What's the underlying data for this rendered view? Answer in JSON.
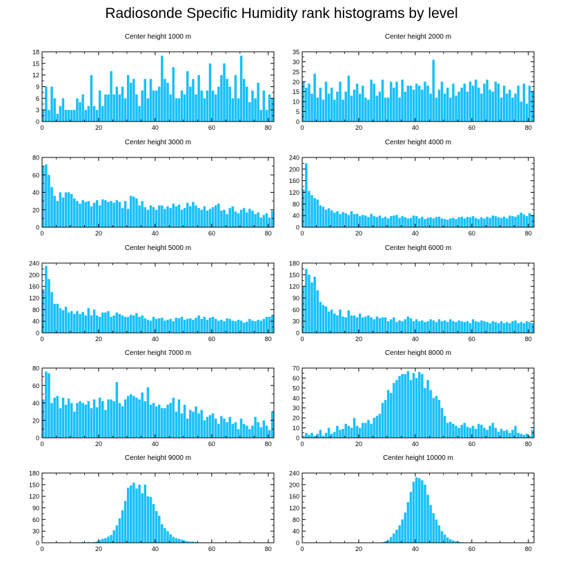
{
  "title": "Radiosonde Specific Humidity rank histograms by level",
  "colors": {
    "bar": "#18c0f8",
    "axis": "#000000",
    "background": "#ffffff"
  },
  "chart_data": [
    {
      "type": "bar",
      "title": "Center height 1000 m",
      "xticks": [
        0,
        20,
        40,
        60,
        80
      ],
      "xlim": [
        0,
        82
      ],
      "ylim": [
        0,
        18
      ],
      "yticks": [
        0,
        3,
        6,
        9,
        12,
        15,
        18
      ],
      "values": [
        3,
        9,
        3,
        9,
        6,
        2,
        4,
        6,
        3,
        3,
        3,
        3,
        6,
        5,
        7,
        3,
        4,
        12,
        4,
        3,
        8,
        4,
        7,
        7,
        13,
        7,
        9,
        7,
        9,
        6,
        12,
        10,
        11,
        7,
        4,
        8,
        11,
        6,
        11,
        8,
        8,
        9,
        17,
        11,
        10,
        7,
        14,
        6,
        6,
        8,
        7,
        13,
        9,
        11,
        7,
        12,
        8,
        6,
        8,
        15,
        8,
        7,
        9,
        12,
        15,
        11,
        9,
        6,
        12,
        6,
        17,
        11,
        9,
        5,
        8,
        6,
        10,
        3,
        8,
        3,
        7,
        6
      ]
    },
    {
      "type": "bar",
      "title": "Center height 2000 m",
      "xticks": [
        0,
        20,
        40,
        60,
        80
      ],
      "xlim": [
        0,
        82
      ],
      "ylim": [
        0,
        35
      ],
      "yticks": [
        0,
        5,
        10,
        15,
        20,
        25,
        30,
        35
      ],
      "values": [
        20,
        17,
        19,
        14,
        24,
        12,
        17,
        11,
        20,
        14,
        17,
        11,
        15,
        20,
        11,
        15,
        23,
        13,
        16,
        19,
        14,
        18,
        12,
        11,
        21,
        19,
        13,
        15,
        21,
        12,
        12,
        20,
        17,
        20,
        12,
        21,
        15,
        18,
        18,
        16,
        19,
        18,
        16,
        20,
        18,
        14,
        31,
        12,
        16,
        20,
        14,
        17,
        12,
        19,
        13,
        15,
        17,
        19,
        15,
        20,
        18,
        21,
        17,
        14,
        19,
        21,
        16,
        15,
        20,
        19,
        12,
        18,
        14,
        16,
        12,
        14,
        18,
        10,
        19,
        9,
        18,
        15
      ]
    },
    {
      "type": "bar",
      "title": "Center height 3000 m",
      "xticks": [
        0,
        20,
        40,
        60,
        80
      ],
      "xlim": [
        0,
        82
      ],
      "ylim": [
        0,
        80
      ],
      "yticks": [
        0,
        20,
        40,
        60,
        80
      ],
      "values": [
        70,
        72,
        60,
        46,
        36,
        30,
        40,
        34,
        40,
        40,
        38,
        33,
        30,
        27,
        31,
        29,
        30,
        24,
        28,
        31,
        25,
        32,
        31,
        29,
        30,
        28,
        31,
        29,
        22,
        30,
        21,
        36,
        35,
        33,
        25,
        30,
        23,
        20,
        25,
        23,
        20,
        25,
        25,
        21,
        24,
        22,
        27,
        24,
        26,
        20,
        22,
        28,
        24,
        29,
        25,
        22,
        20,
        24,
        19,
        21,
        23,
        25,
        27,
        19,
        20,
        15,
        22,
        24,
        18,
        16,
        20,
        22,
        17,
        21,
        19,
        15,
        17,
        11,
        14,
        16,
        11,
        19
      ]
    },
    {
      "type": "bar",
      "title": "Center height 4000 m",
      "xticks": [
        0,
        20,
        40,
        60,
        80
      ],
      "xlim": [
        0,
        82
      ],
      "ylim": [
        0,
        240
      ],
      "yticks": [
        0,
        40,
        80,
        120,
        160,
        200,
        240
      ],
      "values": [
        130,
        220,
        125,
        110,
        100,
        95,
        75,
        70,
        60,
        65,
        58,
        50,
        55,
        45,
        52,
        48,
        42,
        55,
        45,
        46,
        38,
        42,
        40,
        35,
        46,
        38,
        35,
        40,
        32,
        36,
        30,
        38,
        40,
        42,
        32,
        38,
        34,
        30,
        32,
        40,
        38,
        30,
        36,
        28,
        32,
        34,
        30,
        35,
        36,
        30,
        28,
        26,
        30,
        32,
        28,
        34,
        36,
        30,
        35,
        34,
        38,
        32,
        28,
        34,
        30,
        36,
        32,
        40,
        38,
        34,
        32,
        36,
        30,
        40,
        38,
        36,
        42,
        50,
        44,
        38,
        48,
        42
      ]
    },
    {
      "type": "bar",
      "title": "Center height 5000 m",
      "xticks": [
        0,
        20,
        40,
        60,
        80
      ],
      "xlim": [
        0,
        82
      ],
      "ylim": [
        0,
        240
      ],
      "yticks": [
        0,
        40,
        80,
        120,
        160,
        200,
        240
      ],
      "values": [
        150,
        230,
        185,
        140,
        100,
        100,
        85,
        78,
        90,
        70,
        75,
        65,
        75,
        65,
        72,
        60,
        85,
        60,
        80,
        60,
        55,
        70,
        70,
        75,
        55,
        60,
        70,
        65,
        60,
        55,
        55,
        62,
        60,
        68,
        55,
        60,
        50,
        45,
        42,
        55,
        48,
        50,
        52,
        42,
        45,
        48,
        40,
        52,
        50,
        55,
        45,
        48,
        50,
        45,
        52,
        60,
        48,
        55,
        45,
        52,
        55,
        48,
        42,
        45,
        40,
        50,
        48,
        42,
        40,
        45,
        42,
        35,
        38,
        48,
        42,
        40,
        45,
        42,
        48,
        55,
        55,
        60
      ]
    },
    {
      "type": "bar",
      "title": "Center height 6000 m",
      "xticks": [
        0,
        20,
        40,
        60,
        80
      ],
      "xlim": [
        0,
        82
      ],
      "ylim": [
        0,
        180
      ],
      "yticks": [
        0,
        30,
        60,
        90,
        120,
        150,
        180
      ],
      "values": [
        120,
        165,
        150,
        130,
        145,
        110,
        80,
        72,
        68,
        55,
        60,
        50,
        45,
        60,
        42,
        40,
        58,
        45,
        45,
        40,
        50,
        40,
        42,
        45,
        40,
        35,
        42,
        38,
        40,
        40,
        30,
        35,
        40,
        28,
        32,
        30,
        35,
        42,
        38,
        30,
        35,
        30,
        32,
        28,
        30,
        35,
        32,
        28,
        35,
        30,
        32,
        28,
        35,
        30,
        28,
        32,
        30,
        28,
        30,
        25,
        35,
        30,
        28,
        32,
        30,
        28,
        25,
        30,
        28,
        25,
        30,
        25,
        28,
        25,
        30,
        32,
        25,
        28,
        25,
        30,
        28,
        25
      ]
    },
    {
      "type": "bar",
      "title": "Center height 7000 m",
      "xticks": [
        0,
        20,
        40,
        60,
        80
      ],
      "xlim": [
        0,
        82
      ],
      "ylim": [
        0,
        80
      ],
      "yticks": [
        0,
        20,
        40,
        60,
        80
      ],
      "values": [
        44,
        76,
        74,
        40,
        46,
        48,
        34,
        46,
        38,
        45,
        40,
        30,
        40,
        42,
        40,
        38,
        42,
        34,
        44,
        35,
        46,
        42,
        32,
        44,
        44,
        42,
        64,
        40,
        36,
        44,
        48,
        50,
        48,
        46,
        44,
        52,
        42,
        58,
        38,
        40,
        36,
        38,
        34,
        34,
        38,
        40,
        46,
        30,
        44,
        28,
        38,
        22,
        32,
        30,
        36,
        28,
        32,
        20,
        24,
        26,
        28,
        22,
        16,
        25,
        22,
        18,
        24,
        16,
        18,
        10,
        22,
        16,
        14,
        10,
        14,
        24,
        18,
        12,
        20,
        14,
        9,
        30
      ]
    },
    {
      "type": "bar",
      "title": "Center height 8000 m",
      "xticks": [
        0,
        20,
        40,
        60,
        80
      ],
      "xlim": [
        0,
        82
      ],
      "ylim": [
        0,
        70
      ],
      "yticks": [
        0,
        10,
        20,
        30,
        40,
        50,
        60,
        70
      ],
      "values": [
        2,
        5,
        3,
        5,
        2,
        4,
        8,
        2,
        5,
        10,
        4,
        6,
        12,
        8,
        9,
        14,
        12,
        10,
        20,
        12,
        10,
        15,
        15,
        18,
        14,
        20,
        22,
        24,
        35,
        38,
        48,
        45,
        55,
        58,
        62,
        64,
        64,
        67,
        58,
        65,
        60,
        66,
        64,
        50,
        58,
        48,
        40,
        42,
        38,
        30,
        22,
        15,
        16,
        14,
        12,
        10,
        13,
        15,
        11,
        10,
        12,
        9,
        14,
        13,
        10,
        8,
        12,
        15,
        10,
        6,
        9,
        7,
        8,
        5,
        8,
        12,
        5,
        4,
        3,
        4,
        2,
        8
      ]
    },
    {
      "type": "bar",
      "title": "Center height 9000 m",
      "xticks": [
        0,
        20,
        40,
        60,
        80
      ],
      "xlim": [
        0,
        82
      ],
      "ylim": [
        0,
        180
      ],
      "yticks": [
        0,
        30,
        60,
        90,
        120,
        150,
        180
      ],
      "values": [
        0,
        0,
        0,
        0,
        0,
        0,
        0,
        0,
        0,
        0,
        0,
        0,
        1,
        1,
        2,
        1,
        2,
        1,
        2,
        4,
        7,
        10,
        12,
        16,
        20,
        32,
        45,
        63,
        84,
        108,
        142,
        148,
        155,
        140,
        150,
        128,
        150,
        120,
        118,
        100,
        82,
        70,
        48,
        38,
        30,
        22,
        15,
        12,
        10,
        8,
        6,
        4,
        3,
        3,
        2,
        1,
        1,
        0,
        1,
        0,
        0,
        0,
        0,
        0,
        0,
        0,
        0,
        0,
        0,
        0,
        0,
        0,
        0,
        0,
        0,
        0,
        0,
        0,
        0,
        0,
        0,
        0
      ]
    },
    {
      "type": "bar",
      "title": "Center height 10000 m",
      "xticks": [
        0,
        20,
        40,
        60,
        80
      ],
      "xlim": [
        0,
        82
      ],
      "ylim": [
        0,
        240
      ],
      "yticks": [
        0,
        40,
        80,
        120,
        160,
        200,
        240
      ],
      "values": [
        0,
        0,
        0,
        0,
        0,
        0,
        0,
        0,
        0,
        0,
        0,
        0,
        0,
        0,
        0,
        0,
        0,
        0,
        0,
        0,
        0,
        0,
        0,
        0,
        0,
        0,
        0,
        1,
        2,
        5,
        10,
        20,
        32,
        45,
        60,
        80,
        104,
        140,
        175,
        210,
        225,
        222,
        215,
        200,
        165,
        130,
        102,
        80,
        60,
        40,
        28,
        18,
        12,
        8,
        5,
        3,
        2,
        1,
        0,
        0,
        0,
        0,
        0,
        0,
        0,
        0,
        0,
        0,
        0,
        0,
        0,
        0,
        0,
        0,
        0,
        0,
        0,
        0,
        0,
        0,
        0,
        0
      ]
    }
  ]
}
